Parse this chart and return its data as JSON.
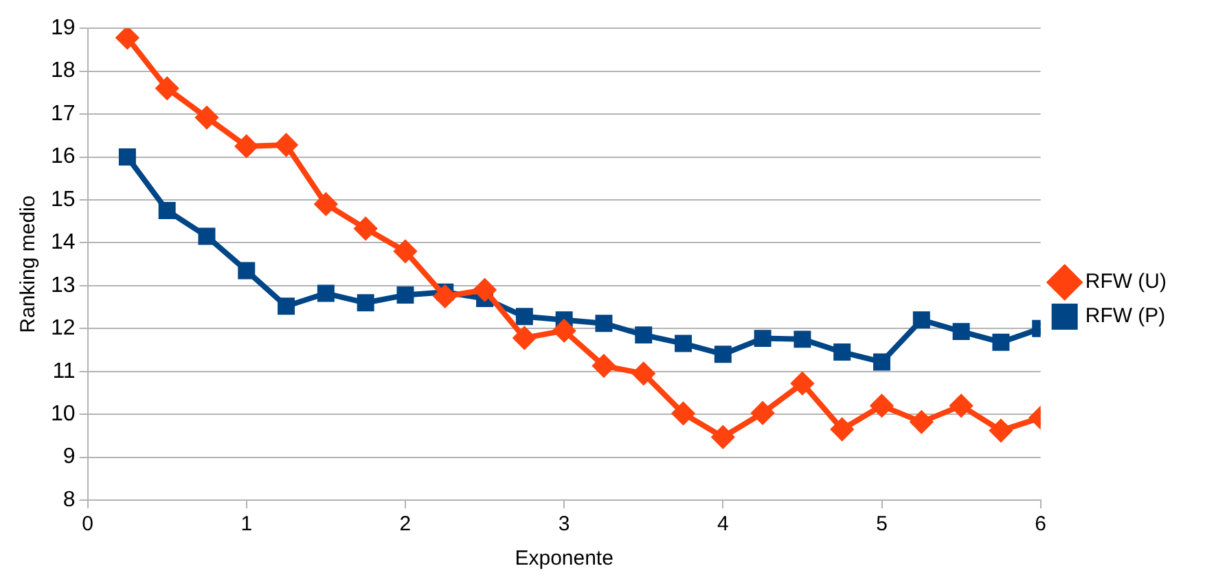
{
  "chart_data": {
    "type": "line",
    "xlabel": "Exponente",
    "ylabel": "Ranking medio",
    "x": [
      0.25,
      0.5,
      0.75,
      1,
      1.25,
      1.5,
      1.75,
      2,
      2.25,
      2.5,
      2.75,
      3,
      3.25,
      3.5,
      3.75,
      4,
      4.25,
      4.5,
      4.75,
      5,
      5.25,
      5.5,
      5.75,
      6
    ],
    "series": [
      {
        "name": "RFW (P)",
        "color": "#004586",
        "marker": "square",
        "values": [
          16.0,
          14.75,
          14.15,
          13.35,
          12.52,
          12.82,
          12.6,
          12.78,
          12.85,
          12.7,
          12.28,
          12.2,
          12.12,
          11.85,
          11.65,
          11.4,
          11.77,
          11.75,
          11.45,
          11.22,
          12.2,
          11.93,
          11.68,
          12.0
        ]
      },
      {
        "name": "RFW (U)",
        "color": "#ff420e",
        "marker": "diamond",
        "values": [
          18.78,
          17.6,
          16.92,
          16.25,
          16.28,
          14.9,
          14.33,
          13.8,
          12.75,
          12.9,
          11.78,
          11.95,
          11.13,
          10.95,
          10.02,
          9.47,
          10.03,
          10.72,
          9.65,
          10.2,
          9.82,
          10.2,
          9.62,
          9.92
        ]
      }
    ],
    "xlim": [
      0,
      6
    ],
    "xticks": [
      0,
      1,
      2,
      3,
      4,
      5,
      6
    ],
    "ylim": [
      8,
      19
    ],
    "yticks": [
      8,
      9,
      10,
      11,
      12,
      13,
      14,
      15,
      16,
      17,
      18,
      19
    ],
    "grid": "y",
    "legend": "right",
    "line_style": "solid"
  }
}
